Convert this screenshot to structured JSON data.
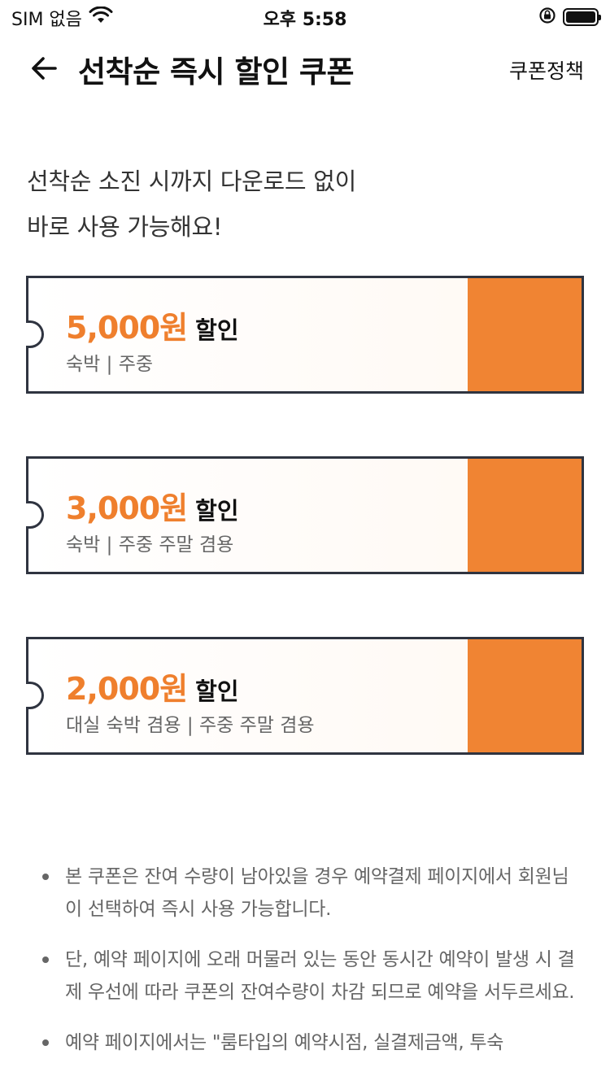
{
  "status_bar": {
    "carrier": "SIM 없음",
    "time": "오후 5:58"
  },
  "nav": {
    "title": "선착순 즉시 할인 쿠폰",
    "policy_label": "쿠폰정책"
  },
  "intro": {
    "line1": "선착순 소진 시까지 다운로드 없이",
    "line2": "바로 사용 가능해요!"
  },
  "coupons": [
    {
      "amount": "5,000원",
      "suffix": "할인",
      "desc": "숙박 | 주중"
    },
    {
      "amount": "3,000원",
      "suffix": "할인",
      "desc": "숙박 | 주중 주말 겸용"
    },
    {
      "amount": "2,000원",
      "suffix": "할인",
      "desc": "대실 숙박 겸용 | 주중 주말 겸용"
    }
  ],
  "notes": [
    "본 쿠폰은 잔여 수량이 남아있을 경우 예약결제 페이지에서 회원님이 선택하여 즉시 사용 가능합니다.",
    "단, 예약 페이지에 오래 머물러 있는 동안 동시간 예약이 발생 시 결제 우선에 따라 쿠폰의 잔여수량이 차감 되므로 예약을 서두르세요.",
    "예약 페이지에서는 \"룸타입의 예약시점, 실결제금액, 투숙"
  ],
  "colors": {
    "accent": "#ef7f2d",
    "stub": "#f08433",
    "border": "#2f3440"
  },
  "icons": {
    "wifi": "wifi-icon",
    "orientation_lock": "orientation-lock-icon",
    "battery": "battery-icon",
    "back": "arrow-left-icon"
  }
}
